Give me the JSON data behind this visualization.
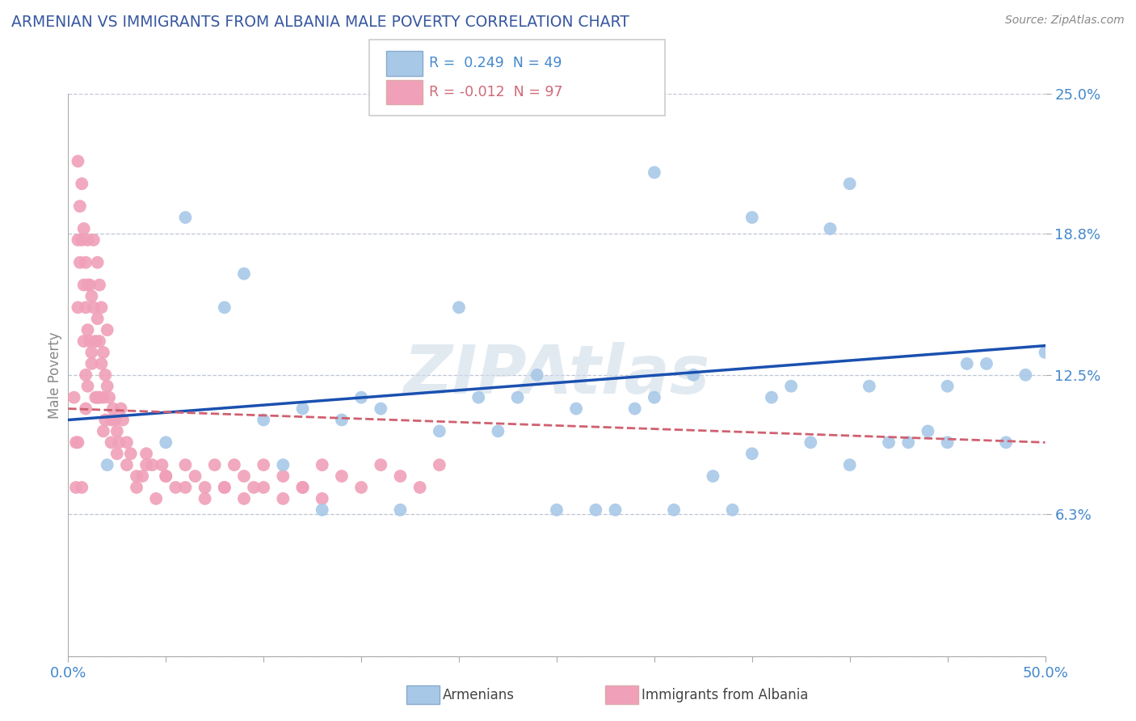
{
  "title": "ARMENIAN VS IMMIGRANTS FROM ALBANIA MALE POVERTY CORRELATION CHART",
  "source": "Source: ZipAtlas.com",
  "ylabel": "Male Poverty",
  "x_min": 0.0,
  "x_max": 0.5,
  "y_min": 0.0,
  "y_max": 0.25,
  "legend1_r": "0.249",
  "legend1_n": "49",
  "legend2_r": "-0.012",
  "legend2_n": "97",
  "blue_color": "#a8c8e8",
  "pink_color": "#f0a0b8",
  "trend_blue": "#1a50b0",
  "trend_pink": "#d06070",
  "background": "#ffffff",
  "grid_color": "#b8c0d0",
  "title_color": "#3858a0",
  "axis_label_color": "#4488cc",
  "watermark": "ZIPAtlas",
  "blue_scatter_x": [
    0.02,
    0.05,
    0.06,
    0.08,
    0.09,
    0.1,
    0.11,
    0.12,
    0.13,
    0.14,
    0.15,
    0.16,
    0.17,
    0.19,
    0.2,
    0.21,
    0.22,
    0.23,
    0.24,
    0.25,
    0.26,
    0.27,
    0.28,
    0.29,
    0.3,
    0.31,
    0.32,
    0.33,
    0.34,
    0.35,
    0.36,
    0.37,
    0.38,
    0.39,
    0.4,
    0.41,
    0.42,
    0.43,
    0.44,
    0.45,
    0.46,
    0.47,
    0.48,
    0.49,
    0.5,
    0.3,
    0.35,
    0.4,
    0.45
  ],
  "blue_scatter_y": [
    0.085,
    0.095,
    0.195,
    0.155,
    0.17,
    0.105,
    0.085,
    0.11,
    0.065,
    0.105,
    0.115,
    0.11,
    0.065,
    0.1,
    0.155,
    0.115,
    0.1,
    0.115,
    0.125,
    0.065,
    0.11,
    0.065,
    0.065,
    0.11,
    0.115,
    0.065,
    0.125,
    0.08,
    0.065,
    0.195,
    0.115,
    0.12,
    0.095,
    0.19,
    0.085,
    0.12,
    0.095,
    0.095,
    0.1,
    0.12,
    0.13,
    0.13,
    0.095,
    0.125,
    0.135,
    0.215,
    0.09,
    0.21,
    0.095
  ],
  "pink_scatter_x": [
    0.003,
    0.004,
    0.004,
    0.005,
    0.005,
    0.005,
    0.006,
    0.006,
    0.007,
    0.007,
    0.008,
    0.008,
    0.008,
    0.009,
    0.009,
    0.009,
    0.01,
    0.01,
    0.01,
    0.01,
    0.011,
    0.011,
    0.012,
    0.012,
    0.013,
    0.013,
    0.014,
    0.014,
    0.015,
    0.015,
    0.016,
    0.016,
    0.016,
    0.017,
    0.017,
    0.018,
    0.018,
    0.019,
    0.019,
    0.02,
    0.02,
    0.021,
    0.022,
    0.023,
    0.024,
    0.025,
    0.026,
    0.027,
    0.028,
    0.03,
    0.032,
    0.035,
    0.038,
    0.04,
    0.043,
    0.045,
    0.048,
    0.05,
    0.055,
    0.06,
    0.065,
    0.07,
    0.075,
    0.08,
    0.085,
    0.09,
    0.095,
    0.1,
    0.11,
    0.12,
    0.13,
    0.14,
    0.15,
    0.16,
    0.17,
    0.18,
    0.19,
    0.005,
    0.007,
    0.009,
    0.012,
    0.015,
    0.018,
    0.022,
    0.025,
    0.03,
    0.035,
    0.04,
    0.05,
    0.06,
    0.07,
    0.08,
    0.09,
    0.1,
    0.11,
    0.12,
    0.13
  ],
  "pink_scatter_y": [
    0.115,
    0.095,
    0.075,
    0.22,
    0.185,
    0.155,
    0.2,
    0.175,
    0.21,
    0.185,
    0.19,
    0.165,
    0.14,
    0.175,
    0.155,
    0.125,
    0.185,
    0.165,
    0.145,
    0.12,
    0.165,
    0.14,
    0.16,
    0.135,
    0.185,
    0.155,
    0.14,
    0.115,
    0.175,
    0.15,
    0.165,
    0.14,
    0.115,
    0.155,
    0.13,
    0.135,
    0.115,
    0.125,
    0.105,
    0.145,
    0.12,
    0.115,
    0.105,
    0.11,
    0.105,
    0.1,
    0.095,
    0.11,
    0.105,
    0.095,
    0.09,
    0.075,
    0.08,
    0.09,
    0.085,
    0.07,
    0.085,
    0.08,
    0.075,
    0.085,
    0.08,
    0.075,
    0.085,
    0.075,
    0.085,
    0.08,
    0.075,
    0.085,
    0.08,
    0.075,
    0.085,
    0.08,
    0.075,
    0.085,
    0.08,
    0.075,
    0.085,
    0.095,
    0.075,
    0.11,
    0.13,
    0.115,
    0.1,
    0.095,
    0.09,
    0.085,
    0.08,
    0.085,
    0.08,
    0.075,
    0.07,
    0.075,
    0.07,
    0.075,
    0.07,
    0.075,
    0.07
  ]
}
